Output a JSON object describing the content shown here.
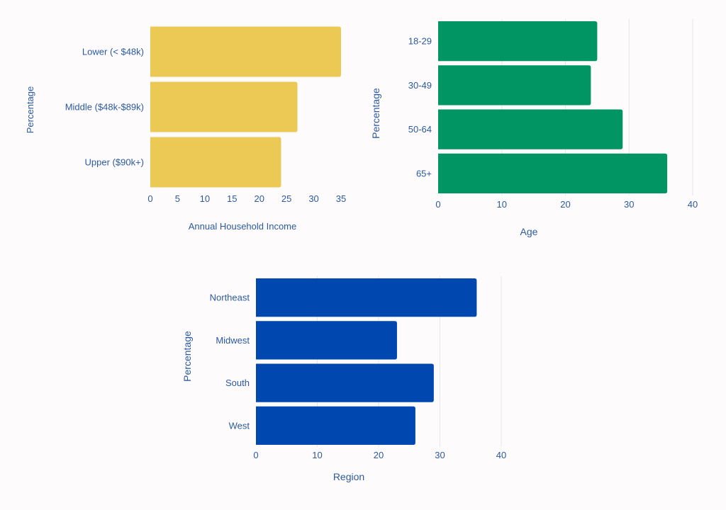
{
  "chart_data": [
    {
      "type": "bar",
      "orientation": "horizontal",
      "categories": [
        "Lower (< $48k)",
        "Middle ($48k-$89k)",
        "Upper ($90k+)"
      ],
      "values": [
        35,
        27,
        24
      ],
      "xlabel": "Annual Household Income",
      "ylabel": "Percentage",
      "xlim": [
        0,
        35
      ],
      "xticks": [
        0,
        5,
        10,
        15,
        20,
        25,
        30,
        35
      ],
      "grid": false,
      "color": "#ecc955"
    },
    {
      "type": "bar",
      "orientation": "horizontal",
      "categories": [
        "18-29",
        "30-49",
        "50-64",
        "65+"
      ],
      "values": [
        25,
        24,
        29,
        36
      ],
      "xlabel": "Age",
      "ylabel": "Percentage",
      "xlim": [
        0,
        40
      ],
      "xticks": [
        0,
        10,
        20,
        30,
        40
      ],
      "grid": true,
      "color": "#009562"
    },
    {
      "type": "bar",
      "orientation": "horizontal",
      "categories": [
        "Northeast",
        "Midwest",
        "South",
        "West"
      ],
      "values": [
        36,
        23,
        29,
        26
      ],
      "xlabel": "Region",
      "ylabel": "Percentage",
      "xlim": [
        0,
        40
      ],
      "xticks": [
        0,
        10,
        20,
        30,
        40
      ],
      "grid": true,
      "color": "#0048b0"
    }
  ]
}
